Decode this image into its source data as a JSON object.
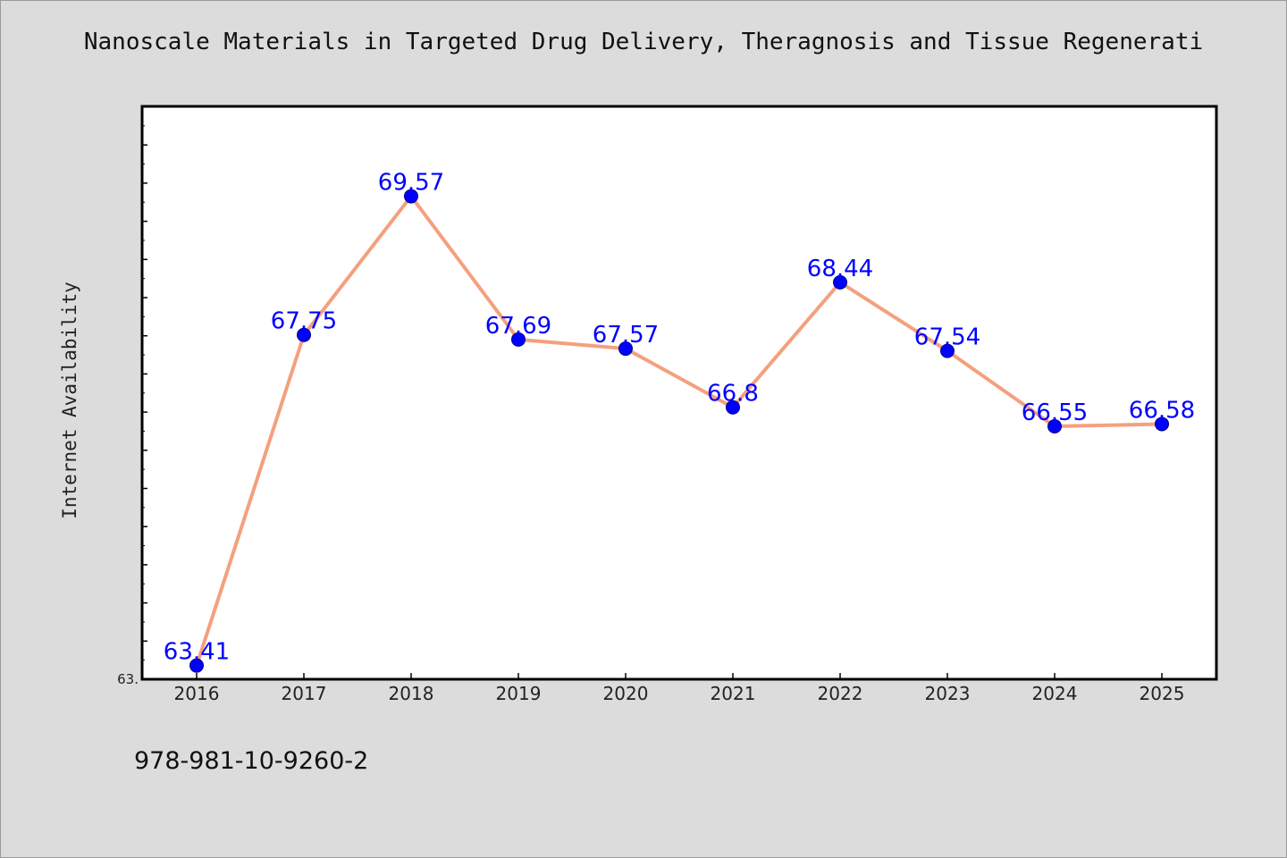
{
  "chart_data": {
    "type": "line",
    "title": "Nanoscale Materials in Targeted Drug Delivery, Theragnosis and Tissue Regenerati",
    "ylabel": "Internet Availability",
    "xlabel": "",
    "categories": [
      "2016",
      "2017",
      "2018",
      "2019",
      "2020",
      "2021",
      "2022",
      "2023",
      "2024",
      "2025"
    ],
    "series": [
      {
        "values": [
          63.41,
          67.75,
          69.57,
          67.69,
          67.57,
          66.8,
          68.44,
          67.54,
          66.55,
          66.58
        ]
      }
    ],
    "data_labels": [
      "63.41",
      "67.75",
      "69.57",
      "67.69",
      "67.57",
      "66.8",
      "68.44",
      "67.54",
      "66.55",
      "66.58"
    ],
    "ylim": [
      63.23,
      70.75
    ],
    "y_tick_label": "63.",
    "grid": false,
    "line_color": "#f4a07e",
    "marker_color": "#0000ff",
    "label_color": "#0000ff"
  },
  "footer": {
    "isbn": "978-981-10-9260-2"
  }
}
